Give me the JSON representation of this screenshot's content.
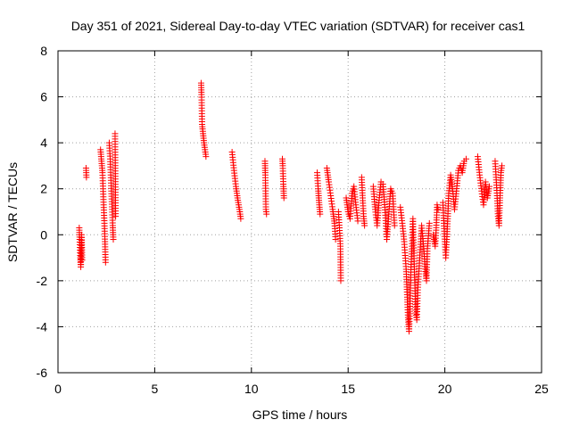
{
  "chart_data": {
    "type": "scatter",
    "title": "Day 351 of 2021, Sidereal Day-to-day VTEC variation (SDTVAR) for receiver cas1",
    "xlabel": "GPS time / hours",
    "ylabel": "SDTVAR / TECUs",
    "xlim": [
      0,
      25
    ],
    "ylim": [
      -6,
      8
    ],
    "xticks": [
      0,
      5,
      10,
      15,
      20,
      25
    ],
    "yticks": [
      -6,
      -4,
      -2,
      0,
      2,
      4,
      6,
      8
    ],
    "grid": true,
    "marker": "+",
    "series": [
      {
        "name": "SDTVAR",
        "color": "#ff0000",
        "segments": [
          [
            [
              1.1,
              0.3
            ],
            [
              1.12,
              -0.2
            ],
            [
              1.15,
              -0.9
            ],
            [
              1.18,
              -1.4
            ],
            [
              1.2,
              -0.6
            ],
            [
              1.22,
              0.0
            ],
            [
              1.25,
              -1.1
            ]
          ],
          [
            [
              1.45,
              2.9
            ],
            [
              1.47,
              2.5
            ]
          ],
          [
            [
              2.2,
              3.7
            ],
            [
              2.25,
              3.2
            ],
            [
              2.3,
              2.7
            ],
            [
              2.33,
              2.0
            ],
            [
              2.36,
              1.3
            ],
            [
              2.4,
              0.5
            ],
            [
              2.43,
              -0.3
            ],
            [
              2.46,
              -1.2
            ]
          ],
          [
            [
              2.65,
              4.0
            ],
            [
              2.7,
              3.3
            ],
            [
              2.73,
              2.6
            ],
            [
              2.76,
              1.9
            ],
            [
              2.8,
              1.1
            ],
            [
              2.83,
              0.4
            ],
            [
              2.86,
              -0.2
            ]
          ],
          [
            [
              2.95,
              4.4
            ],
            [
              2.98,
              0.8
            ]
          ],
          [
            [
              7.4,
              6.6
            ],
            [
              7.42,
              6.1
            ],
            [
              7.45,
              4.8
            ],
            [
              7.5,
              4.4
            ],
            [
              7.55,
              4.0
            ],
            [
              7.6,
              3.7
            ],
            [
              7.65,
              3.4
            ]
          ],
          [
            [
              9.0,
              3.6
            ],
            [
              9.1,
              2.8
            ],
            [
              9.2,
              2.1
            ],
            [
              9.3,
              1.5
            ],
            [
              9.4,
              1.0
            ],
            [
              9.45,
              0.7
            ]
          ],
          [
            [
              10.7,
              3.2
            ],
            [
              10.72,
              2.6
            ],
            [
              10.75,
              1.1
            ],
            [
              10.78,
              0.9
            ]
          ],
          [
            [
              11.6,
              3.3
            ],
            [
              11.62,
              3.0
            ],
            [
              11.65,
              2.2
            ],
            [
              11.68,
              1.6
            ]
          ],
          [
            [
              13.4,
              2.7
            ],
            [
              13.45,
              2.0
            ],
            [
              13.5,
              1.4
            ],
            [
              13.55,
              0.9
            ]
          ],
          [
            [
              13.9,
              2.9
            ],
            [
              14.0,
              2.3
            ],
            [
              14.1,
              1.7
            ],
            [
              14.2,
              1.1
            ],
            [
              14.3,
              0.5
            ],
            [
              14.35,
              -0.2
            ]
          ],
          [
            [
              14.5,
              1.0
            ],
            [
              14.55,
              0.3
            ],
            [
              14.6,
              -0.5
            ],
            [
              14.62,
              -2.0
            ]
          ],
          [
            [
              14.9,
              1.6
            ],
            [
              15.0,
              1.0
            ],
            [
              15.1,
              0.7
            ],
            [
              15.2,
              1.8
            ],
            [
              15.3,
              2.1
            ],
            [
              15.4,
              1.3
            ],
            [
              15.5,
              0.6
            ]
          ],
          [
            [
              15.7,
              2.5
            ],
            [
              15.75,
              1.6
            ],
            [
              15.8,
              0.8
            ],
            [
              15.85,
              0.4
            ]
          ],
          [
            [
              16.3,
              2.1
            ],
            [
              16.4,
              1.1
            ],
            [
              16.5,
              0.4
            ],
            [
              16.6,
              1.5
            ],
            [
              16.7,
              2.3
            ],
            [
              16.8,
              2.2
            ],
            [
              16.9,
              1.2
            ],
            [
              17.0,
              -0.2
            ],
            [
              17.1,
              0.9
            ],
            [
              17.2,
              2.0
            ],
            [
              17.3,
              1.8
            ],
            [
              17.4,
              0.4
            ]
          ],
          [
            [
              17.7,
              1.2
            ],
            [
              17.8,
              0.5
            ],
            [
              17.9,
              -0.3
            ],
            [
              18.0,
              -1.5
            ],
            [
              18.05,
              -2.6
            ],
            [
              18.1,
              -3.6
            ],
            [
              18.15,
              -4.2
            ],
            [
              18.2,
              -3.0
            ],
            [
              18.25,
              -1.4
            ],
            [
              18.3,
              -0.5
            ],
            [
              18.35,
              0.7
            ],
            [
              18.4,
              -0.8
            ],
            [
              18.45,
              -2.2
            ],
            [
              18.5,
              -3.4
            ],
            [
              18.55,
              -3.7
            ],
            [
              18.6,
              -2.4
            ],
            [
              18.7,
              -1.0
            ],
            [
              18.8,
              0.4
            ],
            [
              18.9,
              -0.5
            ],
            [
              19.0,
              -1.6
            ],
            [
              19.05,
              -2.0
            ],
            [
              19.1,
              -0.6
            ],
            [
              19.2,
              0.5
            ]
          ],
          [
            [
              19.4,
              0.0
            ],
            [
              19.5,
              -0.5
            ],
            [
              19.55,
              0.2
            ],
            [
              19.6,
              1.3
            ],
            [
              19.65,
              1.1
            ]
          ],
          [
            [
              19.9,
              1.4
            ],
            [
              19.95,
              0.5
            ],
            [
              20.0,
              -0.3
            ],
            [
              20.05,
              -1.0
            ],
            [
              20.1,
              -0.2
            ],
            [
              20.15,
              0.7
            ],
            [
              20.2,
              1.8
            ],
            [
              20.3,
              2.6
            ],
            [
              20.4,
              2.0
            ],
            [
              20.5,
              1.1
            ],
            [
              20.6,
              1.9
            ],
            [
              20.7,
              2.8
            ],
            [
              20.8,
              3.0
            ],
            [
              20.9,
              2.7
            ],
            [
              21.0,
              3.2
            ],
            [
              21.1,
              3.3
            ]
          ],
          [
            [
              21.7,
              3.4
            ],
            [
              21.8,
              2.6
            ],
            [
              21.9,
              1.9
            ],
            [
              22.0,
              1.3
            ],
            [
              22.1,
              2.3
            ],
            [
              22.2,
              1.6
            ],
            [
              22.3,
              2.1
            ]
          ],
          [
            [
              22.6,
              3.2
            ],
            [
              22.65,
              2.5
            ],
            [
              22.7,
              1.7
            ],
            [
              22.75,
              0.8
            ],
            [
              22.8,
              0.4
            ],
            [
              22.85,
              1.6
            ],
            [
              22.9,
              2.7
            ],
            [
              22.95,
              3.0
            ]
          ]
        ]
      }
    ]
  }
}
